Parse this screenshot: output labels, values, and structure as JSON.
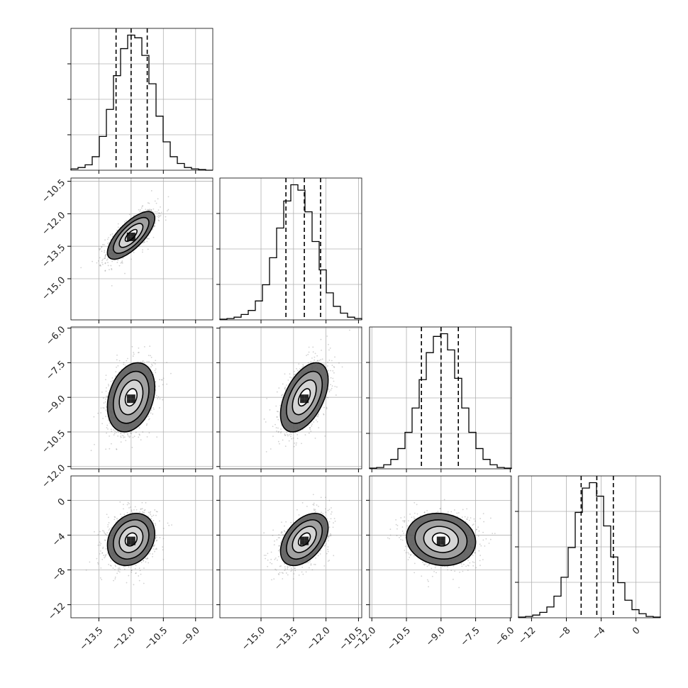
{
  "chart_data": {
    "type": "corner",
    "title": "",
    "variables": [
      {
        "mean": -12.0,
        "sd": 0.55,
        "quantiles": [
          -12.7,
          -12.0,
          -11.25
        ],
        "range": [
          -14.8,
          -8.2
        ],
        "ticks": [
          -13.5,
          -12.0,
          -10.5,
          -9.0
        ],
        "tick_labels": [
          "−13.5",
          "−12.0",
          "−10.5",
          "−9.0"
        ]
      },
      {
        "mean": -13.0,
        "sd": 0.55,
        "quantiles": [
          -13.85,
          -13.0,
          -12.25
        ],
        "range": [
          -16.9,
          -10.35
        ],
        "ticks": [
          -15.0,
          -13.5,
          -12.0,
          -10.5
        ],
        "tick_labels": [
          "−15.0",
          "−13.5",
          "−12.0",
          "−10.5"
        ]
      },
      {
        "mean": -9.0,
        "sd": 0.75,
        "quantiles": [
          -9.85,
          -9.0,
          -8.25
        ],
        "range": [
          -12.1,
          -5.95
        ],
        "ticks": [
          -12.0,
          -10.5,
          -9.0,
          -7.5,
          -6.0
        ],
        "tick_labels": [
          "−12.0",
          "−10.5",
          "−9.0",
          "−7.5",
          "−6.0"
        ]
      },
      {
        "mean": -4.5,
        "sd": 1.5,
        "quantiles": [
          -6.3,
          -4.5,
          -2.6
        ],
        "range": [
          -13.5,
          2.8
        ],
        "ticks": [
          -12,
          -8,
          -4,
          0
        ],
        "tick_labels": [
          "−12",
          "−8",
          "−4",
          "0"
        ]
      }
    ],
    "histograms": [
      {
        "counts": [
          1,
          2,
          4,
          10,
          25,
          45,
          70,
          90,
          100,
          98,
          85,
          64,
          40,
          21,
          10,
          5,
          2,
          1,
          0.5,
          0
        ]
      },
      {
        "counts": [
          0.5,
          1,
          2,
          4,
          7,
          14,
          26,
          46,
          68,
          88,
          100,
          96,
          80,
          58,
          37,
          20,
          10,
          5,
          2,
          1
        ]
      },
      {
        "counts": [
          0.5,
          1,
          3,
          7,
          15,
          27,
          45,
          66,
          86,
          98,
          100,
          88,
          67,
          45,
          27,
          15,
          7,
          3,
          1,
          0.5
        ]
      },
      {
        "counts": [
          0.5,
          1,
          2,
          4,
          8,
          16,
          30,
          52,
          78,
          96,
          100,
          90,
          68,
          45,
          26,
          13,
          6,
          3,
          1,
          0.5
        ]
      }
    ],
    "pairs": [
      {
        "x": 0,
        "y": 1,
        "correlation": 0.72
      },
      {
        "x": 0,
        "y": 2,
        "correlation": 0.28
      },
      {
        "x": 1,
        "y": 2,
        "correlation": 0.5
      },
      {
        "x": 0,
        "y": 3,
        "correlation": 0.22
      },
      {
        "x": 1,
        "y": 3,
        "correlation": 0.45
      },
      {
        "x": 2,
        "y": 3,
        "correlation": -0.1
      }
    ],
    "contour_levels_sigma": [
      0.5,
      1.0,
      1.5,
      2.0
    ],
    "grid": true
  }
}
